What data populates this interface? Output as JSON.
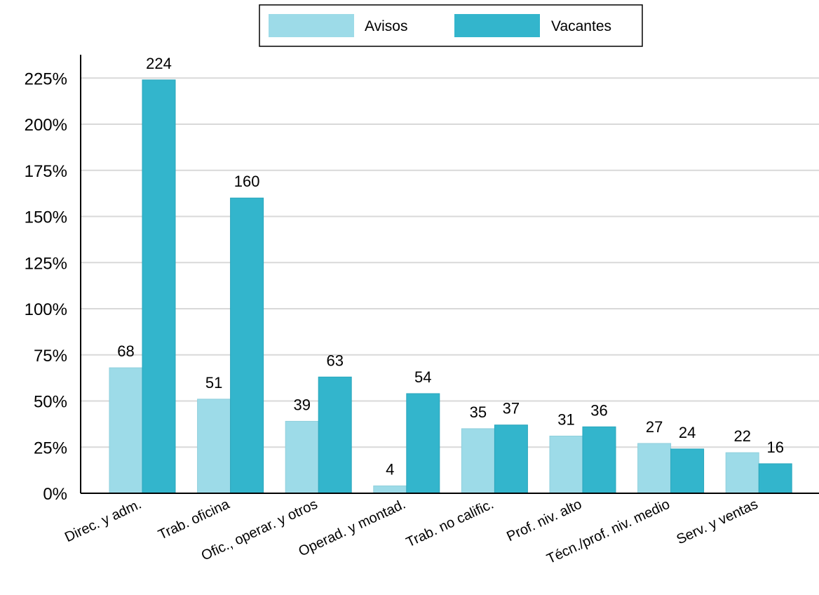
{
  "chart_data": {
    "type": "bar",
    "categories": [
      "Direc. y adm.",
      "Trab. oficina",
      "Ofic., operar. y otros",
      "Operad. y montad.",
      "Trab. no calific.",
      "Prof. niv. alto",
      "Técn./prof. niv. medio",
      "Serv. y ventas"
    ],
    "series": [
      {
        "name": "Avisos",
        "values": [
          68,
          51,
          39,
          4,
          35,
          31,
          27,
          22
        ],
        "color": "#9ddbe8",
        "labels": [
          "68",
          "51",
          "39",
          "4",
          "35",
          "31",
          "27",
          "22"
        ]
      },
      {
        "name": "Vacantes",
        "values": [
          224,
          160,
          63,
          54,
          37,
          36,
          24,
          16
        ],
        "color": "#33b5cc",
        "labels": [
          "224",
          "160",
          "63",
          "54",
          "37",
          "36",
          "24",
          "16"
        ]
      }
    ],
    "yticks": [
      "0%",
      "25%",
      "50%",
      "75%",
      "100%",
      "125%",
      "150%",
      "175%",
      "200%",
      "225%"
    ],
    "ylim": [
      0,
      235
    ],
    "grid": true,
    "legend_position": "top-center",
    "xlabel": "",
    "ylabel": "",
    "title": ""
  }
}
